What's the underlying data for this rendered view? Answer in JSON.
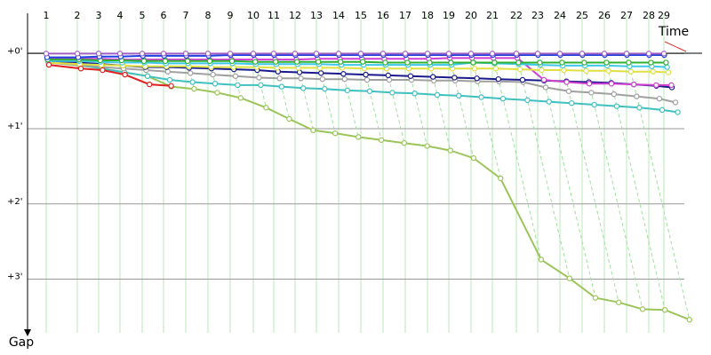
{
  "chart_data": {
    "type": "line",
    "x_label": "Time",
    "y_label": "Gap",
    "xlim": [
      0,
      38
    ],
    "ylim": [
      -0.5,
      3.75
    ],
    "gap_scale_px_per_min": 20,
    "xticks": [
      {
        "value": 1.05,
        "label": "1"
      },
      {
        "value": 2.8,
        "label": "2"
      },
      {
        "value": 4.0,
        "label": "3"
      },
      {
        "value": 5.2,
        "label": "4"
      },
      {
        "value": 6.45,
        "label": "5"
      },
      {
        "value": 7.65,
        "label": "6"
      },
      {
        "value": 8.9,
        "label": "7"
      },
      {
        "value": 10.15,
        "label": "8"
      },
      {
        "value": 11.4,
        "label": "9"
      },
      {
        "value": 12.7,
        "label": "10"
      },
      {
        "value": 13.85,
        "label": "11"
      },
      {
        "value": 15.05,
        "label": "12"
      },
      {
        "value": 16.25,
        "label": "13"
      },
      {
        "value": 17.5,
        "label": "14"
      },
      {
        "value": 18.75,
        "label": "15"
      },
      {
        "value": 20.0,
        "label": "16"
      },
      {
        "value": 21.25,
        "label": "17"
      },
      {
        "value": 22.5,
        "label": "18"
      },
      {
        "value": 23.7,
        "label": "19"
      },
      {
        "value": 24.95,
        "label": "20"
      },
      {
        "value": 26.15,
        "label": "21"
      },
      {
        "value": 27.5,
        "label": "22"
      },
      {
        "value": 28.7,
        "label": "23"
      },
      {
        "value": 29.95,
        "label": "24"
      },
      {
        "value": 31.2,
        "label": "25"
      },
      {
        "value": 32.45,
        "label": "26"
      },
      {
        "value": 33.7,
        "label": "27"
      },
      {
        "value": 34.95,
        "label": "28"
      },
      {
        "value": 35.8,
        "label": "29"
      }
    ],
    "yticks": [
      {
        "value": 0,
        "label": "+0'"
      },
      {
        "value": 1,
        "label": "+1'"
      },
      {
        "value": 2,
        "label": "+2'"
      },
      {
        "value": 3,
        "label": "+3'"
      }
    ],
    "grid": true,
    "series": [
      {
        "color": "#9bc45a",
        "values": [
          0.12,
          0.16,
          0.2,
          0.25,
          0.3,
          0.44,
          0.47,
          0.52,
          0.59,
          0.72,
          0.87,
          1.02,
          1.06,
          1.11,
          1.15,
          1.19,
          1.23,
          1.29,
          1.39,
          1.66,
          2.74,
          2.99,
          3.25,
          3.31,
          3.4,
          3.41,
          3.54,
          null,
          null
        ]
      },
      {
        "color": "#40c0c0",
        "values": [
          0.1,
          0.15,
          0.2,
          0.25,
          0.3,
          0.35,
          0.38,
          0.4,
          0.42,
          0.42,
          0.44,
          0.46,
          0.47,
          0.49,
          0.5,
          0.52,
          0.53,
          0.55,
          0.56,
          0.58,
          0.6,
          0.62,
          0.64,
          0.66,
          0.68,
          0.7,
          0.72,
          0.75,
          0.78
        ]
      },
      {
        "color": "#a0a0a0",
        "values": [
          0.12,
          0.15,
          0.18,
          0.2,
          0.22,
          0.24,
          0.26,
          0.28,
          0.3,
          0.32,
          0.33,
          0.33,
          0.34,
          0.34,
          0.35,
          0.35,
          0.35,
          0.36,
          0.36,
          0.37,
          0.37,
          0.38,
          0.45,
          0.5,
          0.52,
          0.54,
          0.57,
          0.6,
          0.65
        ]
      },
      {
        "color": "#1a1a8c",
        "values": [
          0.1,
          0.12,
          0.14,
          0.16,
          0.18,
          0.18,
          0.19,
          0.2,
          0.21,
          0.22,
          0.24,
          0.25,
          0.26,
          0.27,
          0.28,
          0.29,
          0.3,
          0.31,
          0.32,
          0.33,
          0.34,
          0.35,
          0.36,
          0.37,
          0.38,
          0.39,
          0.41,
          0.43,
          0.45
        ]
      },
      {
        "color": "#d040d0",
        "values": [
          0.06,
          0.07,
          0.07,
          0.08,
          0.08,
          0.08,
          0.08,
          0.08,
          0.08,
          0.08,
          0.08,
          0.08,
          0.07,
          0.07,
          0.07,
          0.07,
          0.07,
          0.07,
          0.06,
          0.06,
          0.06,
          0.06,
          0.35,
          0.38,
          0.4,
          0.4,
          0.41,
          0.42,
          0.42
        ]
      },
      {
        "color": "#e0e040",
        "values": [
          0.12,
          0.14,
          0.15,
          0.16,
          0.17,
          0.17,
          0.17,
          0.18,
          0.18,
          0.18,
          0.19,
          0.19,
          0.19,
          0.19,
          0.2,
          0.2,
          0.2,
          0.2,
          0.2,
          0.2,
          0.2,
          0.21,
          0.22,
          0.22,
          0.23,
          0.23,
          0.24,
          0.24,
          0.25
        ]
      },
      {
        "color": "#40c8e8",
        "values": [
          0.1,
          0.1,
          0.11,
          0.12,
          0.12,
          0.13,
          0.13,
          0.13,
          0.13,
          0.14,
          0.14,
          0.14,
          0.14,
          0.15,
          0.15,
          0.15,
          0.15,
          0.15,
          0.15,
          0.12,
          0.13,
          0.14,
          0.15,
          0.16,
          0.16,
          0.16,
          0.17,
          0.17,
          0.18
        ]
      },
      {
        "color": "#30b030",
        "values": [
          0.08,
          0.08,
          0.09,
          0.09,
          0.1,
          0.1,
          0.1,
          0.1,
          0.1,
          0.11,
          0.11,
          0.11,
          0.11,
          0.11,
          0.11,
          0.12,
          0.12,
          0.12,
          0.12,
          0.12,
          0.12,
          0.12,
          0.12,
          0.12,
          0.12,
          0.12,
          0.12,
          0.12,
          0.12
        ]
      },
      {
        "color": "#2040e0",
        "values": [
          0.05,
          0.05,
          0.04,
          0.04,
          0.03,
          0.03,
          0.03,
          0.03,
          0.02,
          0.02,
          0.02,
          0.02,
          0.02,
          0.02,
          0.02,
          0.02,
          0.02,
          0.02,
          0.02,
          0.02,
          0.02,
          0.02,
          0.02,
          0.02,
          0.02,
          0.02,
          0.02,
          0.02,
          0.02
        ]
      },
      {
        "color": "#a060c0",
        "values": [
          0,
          0,
          0,
          0,
          0,
          0,
          0,
          0,
          0,
          0,
          0,
          0,
          0,
          0,
          0,
          0,
          0,
          0,
          0,
          0,
          0,
          0,
          0,
          0,
          0,
          0,
          0,
          0,
          0
        ]
      },
      {
        "color": "#e02020",
        "values": [
          0.15,
          0.2,
          0.22,
          0.28,
          0.41,
          0.43,
          null,
          null,
          null,
          null,
          null,
          null,
          null,
          null,
          null,
          null,
          null,
          null,
          null,
          null,
          null,
          null,
          null,
          null,
          null,
          null,
          null,
          null,
          null
        ]
      }
    ]
  }
}
